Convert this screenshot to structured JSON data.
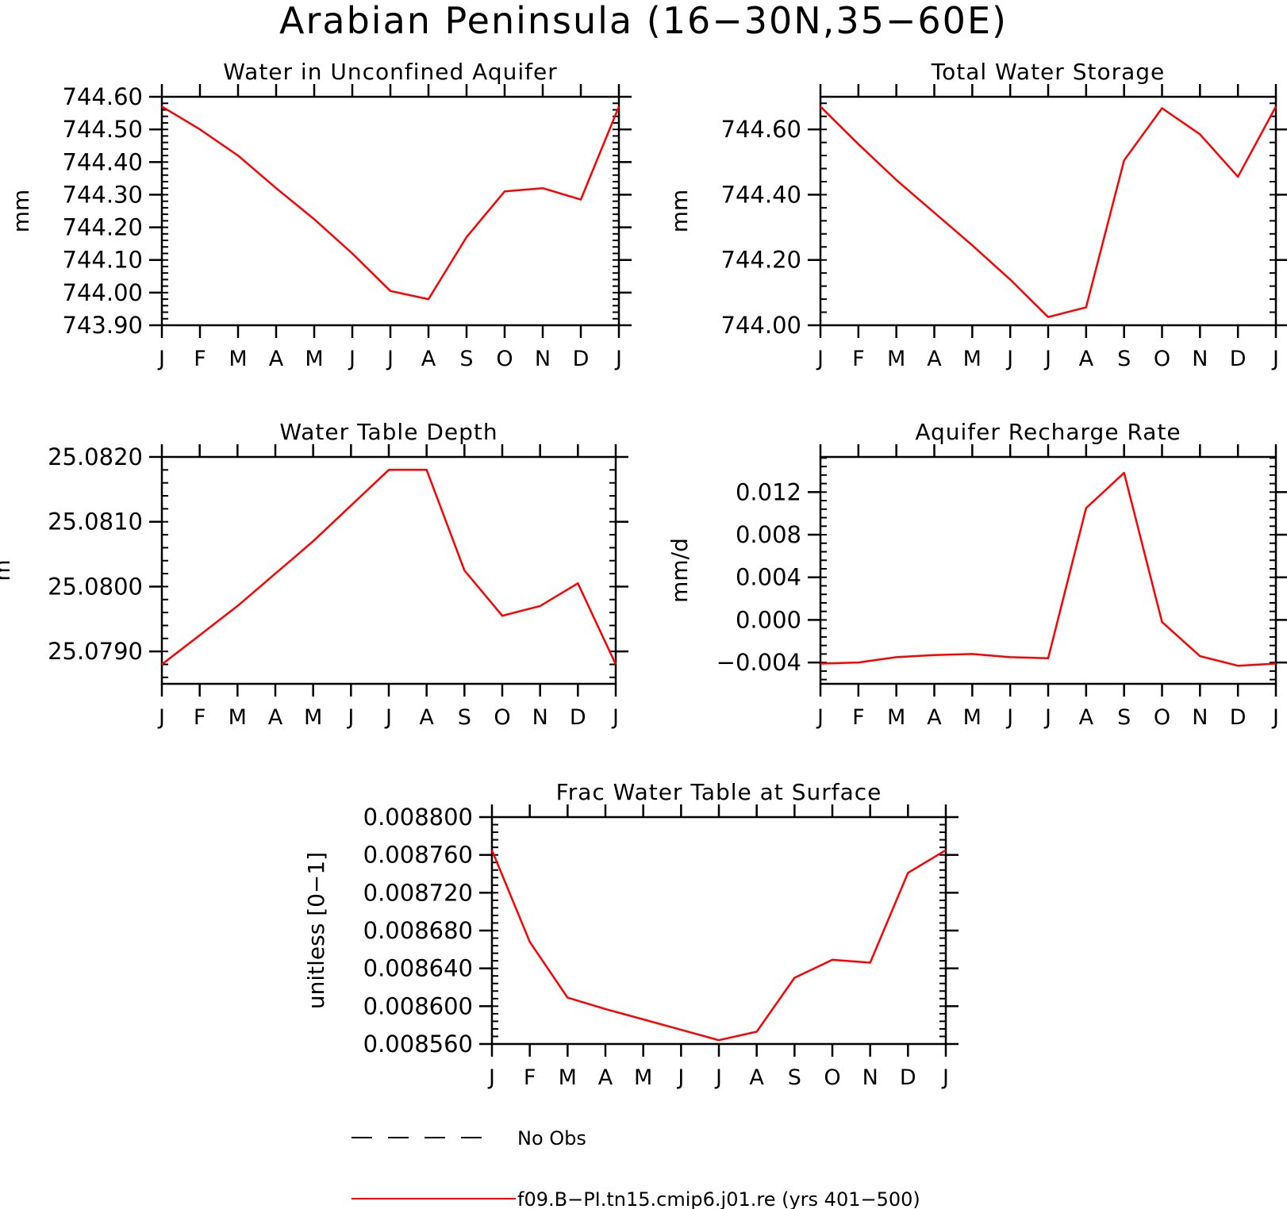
{
  "page_title": "Arabian Peninsula (16−30N,35−60E)",
  "line_color": "#ff0000",
  "legend": {
    "entries": [
      {
        "label": "No Obs",
        "style": "dashed",
        "color": "#000000"
      },
      {
        "label": "f09.B−PI.tn15.cmip6.j01.re (yrs 401−500)",
        "style": "solid",
        "color": "#ff0000"
      }
    ]
  },
  "chart_data": [
    {
      "type": "line",
      "title": "Water in Unconfined Aquifer",
      "ylabel": "mm",
      "xlabel": "",
      "x": [
        "J",
        "F",
        "M",
        "A",
        "M",
        "J",
        "J",
        "A",
        "S",
        "O",
        "N",
        "D",
        "J"
      ],
      "ylim": [
        743.9,
        744.6
      ],
      "yticks": [
        "743.90",
        "744.00",
        "744.10",
        "744.20",
        "744.30",
        "744.40",
        "744.50",
        "744.60"
      ],
      "series": [
        {
          "values": [
            744.57,
            744.5,
            744.42,
            744.32,
            744.225,
            744.12,
            744.005,
            743.98,
            744.17,
            744.31,
            744.32,
            744.285,
            744.57
          ]
        }
      ]
    },
    {
      "type": "line",
      "title": "Total Water Storage",
      "ylabel": "mm",
      "xlabel": "",
      "x": [
        "J",
        "F",
        "M",
        "A",
        "M",
        "J",
        "J",
        "A",
        "S",
        "O",
        "N",
        "D",
        "J"
      ],
      "ylim": [
        744.0,
        744.7
      ],
      "yticks": [
        "744.00",
        "744.20",
        "744.40",
        "744.60"
      ],
      "series": [
        {
          "values": [
            744.67,
            744.555,
            744.445,
            744.345,
            744.245,
            744.14,
            744.025,
            744.055,
            744.505,
            744.665,
            744.585,
            744.455,
            744.67
          ]
        }
      ]
    },
    {
      "type": "line",
      "title": "Water Table Depth",
      "ylabel": "m",
      "xlabel": "",
      "x": [
        "J",
        "F",
        "M",
        "A",
        "M",
        "J",
        "J",
        "A",
        "S",
        "O",
        "N",
        "D",
        "J"
      ],
      "ylim": [
        25.0785,
        25.082
      ],
      "yticks": [
        "25.0790",
        "25.0800",
        "25.0810",
        "25.0820"
      ],
      "series": [
        {
          "values": [
            25.0788,
            25.07925,
            25.0797,
            25.0802,
            25.0807,
            25.08125,
            25.0818,
            25.0818,
            25.08025,
            25.07955,
            25.0797,
            25.08005,
            25.0788
          ]
        }
      ]
    },
    {
      "type": "line",
      "title": "Aquifer Recharge Rate",
      "ylabel": "mm/d",
      "xlabel": "",
      "x": [
        "J",
        "F",
        "M",
        "A",
        "M",
        "J",
        "J",
        "A",
        "S",
        "O",
        "N",
        "D",
        "J"
      ],
      "ylim": [
        -0.006,
        0.0153
      ],
      "yticks": [
        "−0.004",
        "0.000",
        "0.004",
        "0.008",
        "0.012"
      ],
      "series": [
        {
          "values": [
            -0.0041,
            -0.004,
            -0.0035,
            -0.0033,
            -0.0032,
            -0.0035,
            -0.0036,
            0.0105,
            0.0138,
            -0.0002,
            -0.0034,
            -0.0043,
            -0.0041
          ]
        }
      ]
    },
    {
      "type": "line",
      "title": "Frac Water Table at Surface",
      "ylabel": "unitless [0−1]",
      "xlabel": "",
      "x": [
        "J",
        "F",
        "M",
        "A",
        "M",
        "J",
        "J",
        "A",
        "S",
        "O",
        "N",
        "D",
        "J"
      ],
      "ylim": [
        0.00856,
        0.0088
      ],
      "yticks": [
        "0.008560",
        "0.008600",
        "0.008640",
        "0.008680",
        "0.008720",
        "0.008760",
        "0.008800"
      ],
      "series": [
        {
          "values": [
            0.008765,
            0.008668,
            0.008609,
            0.008597,
            0.008586,
            0.008575,
            0.008564,
            0.008573,
            0.00863,
            0.008649,
            0.008646,
            0.008741,
            0.008765
          ]
        }
      ]
    }
  ]
}
